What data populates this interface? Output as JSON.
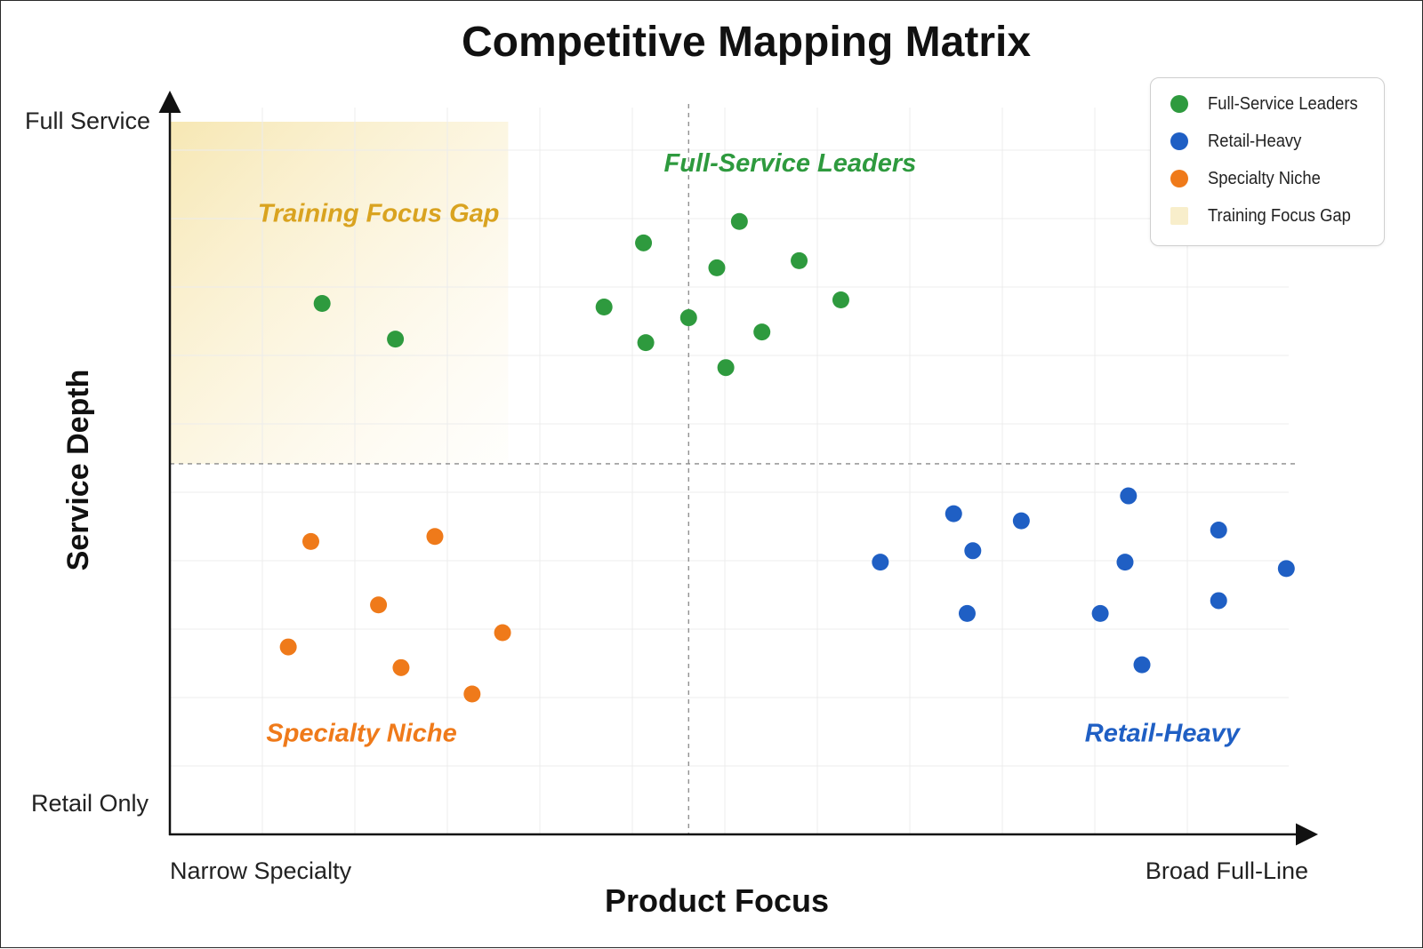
{
  "chart_data": {
    "type": "scatter",
    "title": "Competitive Mapping Matrix",
    "xlabel": "Product Focus",
    "ylabel": "Service Depth",
    "x_tick_labels": {
      "min": "Narrow Specialty",
      "max": "Broad Full-Line"
    },
    "y_tick_labels": {
      "min": "Retail Only",
      "max": "Full Service"
    },
    "xlim": [
      0,
      10
    ],
    "ylim": [
      0,
      10
    ],
    "quadrant_dividers": {
      "x": 4.6,
      "y": 5.2
    },
    "grid": true,
    "legend_position": "top-right",
    "highlight_region": {
      "name": "Training Focus Gap",
      "x": [
        0,
        3
      ],
      "y": [
        5.2,
        10
      ],
      "color": "#f5e6b0"
    },
    "series": [
      {
        "name": "Full-Service Leaders",
        "color": "#2e9a3e",
        "points": [
          {
            "x": 1.35,
            "y": 7.45
          },
          {
            "x": 2.0,
            "y": 6.95
          },
          {
            "x": 4.2,
            "y": 8.3
          },
          {
            "x": 5.05,
            "y": 8.6
          },
          {
            "x": 4.85,
            "y": 7.95
          },
          {
            "x": 5.58,
            "y": 8.05
          },
          {
            "x": 3.85,
            "y": 7.4
          },
          {
            "x": 4.6,
            "y": 7.25
          },
          {
            "x": 5.95,
            "y": 7.5
          },
          {
            "x": 4.22,
            "y": 6.9
          },
          {
            "x": 5.25,
            "y": 7.05
          },
          {
            "x": 4.93,
            "y": 6.55
          }
        ]
      },
      {
        "name": "Retail-Heavy",
        "color": "#1f5fc4",
        "points": [
          {
            "x": 6.95,
            "y": 4.5
          },
          {
            "x": 7.55,
            "y": 4.4
          },
          {
            "x": 8.5,
            "y": 4.75
          },
          {
            "x": 9.3,
            "y": 4.27
          },
          {
            "x": 6.3,
            "y": 3.82
          },
          {
            "x": 7.12,
            "y": 3.98
          },
          {
            "x": 8.47,
            "y": 3.82
          },
          {
            "x": 9.9,
            "y": 3.73
          },
          {
            "x": 7.07,
            "y": 3.1
          },
          {
            "x": 8.25,
            "y": 3.1
          },
          {
            "x": 9.3,
            "y": 3.28
          },
          {
            "x": 8.62,
            "y": 2.38
          }
        ]
      },
      {
        "name": "Specialty Niche",
        "color": "#ef7a1a",
        "points": [
          {
            "x": 1.25,
            "y": 4.11
          },
          {
            "x": 2.35,
            "y": 4.18
          },
          {
            "x": 1.85,
            "y": 3.22
          },
          {
            "x": 2.95,
            "y": 2.83
          },
          {
            "x": 1.05,
            "y": 2.63
          },
          {
            "x": 2.05,
            "y": 2.34
          },
          {
            "x": 2.68,
            "y": 1.97
          }
        ]
      }
    ],
    "annotations": [
      {
        "text": "Full-Service Leaders",
        "x": 5.5,
        "y": 9.3,
        "color": "#2e9a3e"
      },
      {
        "text": "Training Focus Gap",
        "x": 1.85,
        "y": 8.6,
        "color": "#d9a320"
      },
      {
        "text": "Specialty Niche",
        "x": 1.7,
        "y": 1.3,
        "color": "#ef7a1a"
      },
      {
        "text": "Retail-Heavy",
        "x": 8.8,
        "y": 1.3,
        "color": "#1f5fc4"
      }
    ]
  },
  "legend": {
    "items": [
      {
        "label": "Full-Service Leaders",
        "color": "#2e9a3e",
        "shape": "circle"
      },
      {
        "label": "Retail-Heavy",
        "color": "#1f5fc4",
        "shape": "circle"
      },
      {
        "label": "Specialty Niche",
        "color": "#ef7a1a",
        "shape": "circle"
      },
      {
        "label": "Training Focus Gap",
        "color": "#f8eecb",
        "shape": "square"
      }
    ]
  }
}
